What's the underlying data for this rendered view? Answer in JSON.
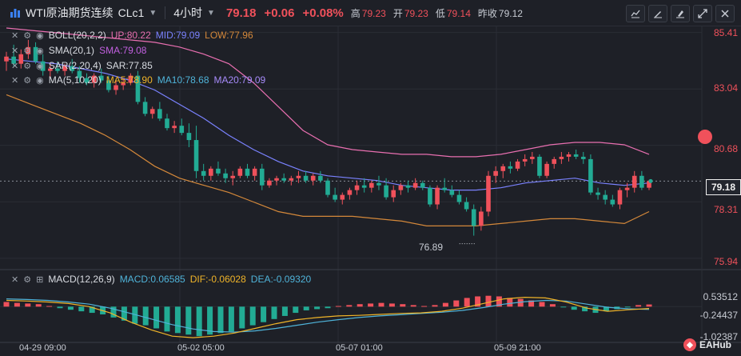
{
  "header": {
    "title": "WTI原油期货连续",
    "symbol": "CLc1",
    "timeframe": "4小时",
    "price": "79.18",
    "change": "+0.06",
    "change_pct": "+0.08%",
    "high_label": "高",
    "high": "79.23",
    "open_label": "开",
    "open": "79.23",
    "low_label": "低",
    "low": "79.14",
    "prev_label": "昨收",
    "prev": "79.12"
  },
  "legends": {
    "boll": {
      "name": "BOLL(20,2,2)",
      "up": "UP:80.22",
      "mid": "MID:79.09",
      "low": "LOW:77.96"
    },
    "sma": {
      "name": "SMA(20,1)",
      "val": "SMA:79.08"
    },
    "sar": {
      "name": "SAR(2,20,4)",
      "val": "SAR:77.85"
    },
    "ma": {
      "name": "MA(5,10,20)",
      "ma5": "MA5:78.90",
      "ma10": "MA10:78.68",
      "ma20": "MA20:79.09"
    },
    "macd": {
      "name": "MACD(12,26,9)",
      "macd": "MACD:0.06585",
      "dif": "DIF:-0.06028",
      "dea": "DEA:-0.09320"
    }
  },
  "price_axis": [
    "85.41",
    "83.04",
    "80.68",
    "79.18",
    "78.31",
    "75.94"
  ],
  "macd_axis": [
    "0.53512",
    "-0.24437",
    "-1.02387"
  ],
  "low_annotation": "76.89",
  "time_axis": [
    "04-29 09:00",
    "05-02 05:00",
    "05-07 01:00",
    "05-09 21:00"
  ],
  "brand": "EAHub",
  "colors": {
    "up": "#f0515b",
    "down": "#22ab94",
    "bg": "#1e2027"
  },
  "chart_data": {
    "type": "candlestick",
    "title": "WTI原油期货连续 CLc1 4小时",
    "ylim": [
      75.5,
      85.7
    ],
    "yticks": [
      85.41,
      83.04,
      80.68,
      78.31,
      75.94
    ],
    "current_price": 79.18,
    "candles": [
      [
        84.2,
        84.6,
        83.8,
        84.4
      ],
      [
        84.4,
        84.9,
        84.0,
        84.1
      ],
      [
        84.1,
        84.7,
        83.9,
        84.5
      ],
      [
        84.5,
        85.1,
        84.3,
        84.8
      ],
      [
        84.8,
        85.0,
        84.1,
        84.2
      ],
      [
        84.2,
        84.5,
        83.6,
        83.8
      ],
      [
        83.8,
        84.1,
        83.5,
        83.9
      ],
      [
        83.9,
        84.2,
        83.7,
        83.8
      ],
      [
        83.8,
        84.1,
        83.6,
        84.0
      ],
      [
        84.0,
        84.3,
        83.7,
        83.8
      ],
      [
        83.8,
        84.0,
        83.3,
        83.5
      ],
      [
        83.5,
        83.7,
        83.2,
        83.3
      ],
      [
        83.3,
        83.7,
        83.1,
        83.6
      ],
      [
        83.6,
        83.9,
        83.3,
        83.4
      ],
      [
        83.4,
        83.6,
        82.9,
        83.0
      ],
      [
        83.0,
        83.4,
        82.8,
        83.2
      ],
      [
        83.2,
        83.5,
        83.0,
        83.3
      ],
      [
        83.3,
        83.7,
        83.2,
        83.6
      ],
      [
        83.6,
        83.8,
        82.4,
        82.5
      ],
      [
        82.5,
        82.7,
        81.9,
        82.0
      ],
      [
        82.0,
        82.3,
        81.8,
        82.2
      ],
      [
        82.2,
        82.5,
        81.7,
        81.8
      ],
      [
        81.8,
        82.0,
        81.3,
        81.4
      ],
      [
        81.4,
        81.7,
        81.2,
        81.5
      ],
      [
        81.5,
        81.8,
        81.1,
        81.2
      ],
      [
        81.2,
        81.6,
        80.6,
        80.9
      ],
      [
        80.9,
        81.5,
        79.3,
        79.6
      ],
      [
        79.6,
        79.9,
        79.2,
        79.4
      ],
      [
        79.4,
        79.8,
        79.2,
        79.7
      ],
      [
        79.7,
        80.0,
        79.4,
        79.5
      ],
      [
        79.5,
        79.7,
        79.1,
        79.3
      ],
      [
        79.3,
        79.6,
        79.0,
        79.4
      ],
      [
        79.4,
        79.8,
        79.3,
        79.7
      ],
      [
        79.7,
        79.9,
        79.3,
        79.4
      ],
      [
        79.4,
        79.8,
        79.2,
        79.7
      ],
      [
        79.7,
        79.9,
        78.8,
        79.0
      ],
      [
        79.0,
        79.3,
        78.9,
        79.2
      ],
      [
        79.2,
        79.4,
        79.0,
        79.3
      ],
      [
        79.3,
        79.5,
        79.1,
        79.2
      ],
      [
        79.2,
        79.4,
        79.0,
        79.3
      ],
      [
        79.3,
        79.6,
        79.1,
        79.4
      ],
      [
        79.4,
        79.6,
        79.1,
        79.2
      ],
      [
        79.2,
        79.5,
        79.0,
        79.4
      ],
      [
        79.4,
        79.6,
        79.1,
        79.2
      ],
      [
        79.2,
        79.3,
        78.5,
        78.6
      ],
      [
        78.6,
        78.9,
        78.3,
        78.4
      ],
      [
        78.4,
        78.7,
        78.2,
        78.6
      ],
      [
        78.6,
        78.9,
        78.4,
        78.8
      ],
      [
        78.8,
        79.2,
        78.6,
        79.0
      ],
      [
        79.0,
        79.3,
        78.7,
        78.9
      ],
      [
        78.9,
        79.2,
        78.7,
        79.1
      ],
      [
        79.1,
        79.4,
        78.8,
        79.0
      ],
      [
        79.0,
        79.3,
        78.4,
        78.5
      ],
      [
        78.5,
        79.0,
        78.3,
        78.8
      ],
      [
        78.8,
        79.1,
        78.6,
        79.0
      ],
      [
        79.0,
        79.2,
        78.7,
        78.9
      ],
      [
        78.9,
        79.3,
        78.8,
        79.1
      ],
      [
        79.1,
        79.2,
        78.8,
        78.9
      ],
      [
        78.9,
        79.0,
        78.1,
        78.2
      ],
      [
        78.2,
        79.0,
        78.0,
        78.9
      ],
      [
        78.9,
        79.3,
        78.7,
        78.8
      ],
      [
        78.8,
        79.0,
        78.5,
        78.6
      ],
      [
        78.6,
        78.8,
        78.2,
        78.3
      ],
      [
        78.3,
        78.5,
        77.9,
        78.0
      ],
      [
        78.0,
        78.2,
        76.89,
        77.3
      ],
      [
        77.3,
        78.1,
        77.1,
        77.9
      ],
      [
        77.9,
        79.6,
        77.7,
        79.4
      ],
      [
        79.4,
        79.8,
        79.1,
        79.6
      ],
      [
        79.6,
        79.9,
        79.3,
        79.8
      ],
      [
        79.8,
        80.0,
        79.5,
        79.7
      ],
      [
        79.7,
        80.1,
        79.6,
        80.0
      ],
      [
        80.0,
        80.3,
        79.8,
        80.1
      ],
      [
        80.1,
        80.4,
        79.9,
        80.2
      ],
      [
        80.2,
        80.3,
        79.3,
        79.4
      ],
      [
        79.4,
        80.0,
        79.3,
        79.9
      ],
      [
        79.9,
        80.2,
        79.7,
        80.1
      ],
      [
        80.1,
        80.4,
        79.9,
        80.2
      ],
      [
        80.2,
        80.4,
        80.0,
        80.3
      ],
      [
        80.3,
        80.5,
        80.1,
        80.2
      ],
      [
        80.2,
        80.4,
        79.9,
        80.1
      ],
      [
        80.1,
        80.3,
        78.6,
        78.7
      ],
      [
        78.7,
        78.9,
        78.4,
        78.6
      ],
      [
        78.6,
        78.8,
        78.2,
        78.4
      ],
      [
        78.4,
        78.6,
        78.1,
        78.2
      ],
      [
        78.2,
        78.9,
        78.0,
        78.8
      ],
      [
        78.8,
        79.1,
        78.5,
        78.9
      ],
      [
        78.9,
        79.6,
        78.7,
        79.4
      ],
      [
        79.4,
        79.6,
        78.8,
        78.9
      ],
      [
        78.9,
        79.23,
        78.8,
        79.18
      ]
    ],
    "boll_up": [
      85.6,
      85.5,
      85.4,
      85.3,
      85.2,
      85.1,
      85.0,
      84.8,
      84.5,
      84.1,
      83.3,
      82.3,
      81.3,
      80.7,
      80.5,
      80.4,
      80.3,
      80.3,
      80.2,
      80.2,
      80.3,
      80.5,
      80.7,
      80.8,
      80.8,
      80.7,
      80.3
    ],
    "boll_mid": [
      84.3,
      84.2,
      84.1,
      83.9,
      83.7,
      83.4,
      83.0,
      82.4,
      81.8,
      81.1,
      80.5,
      80.0,
      79.6,
      79.4,
      79.3,
      79.2,
      79.0,
      78.9,
      78.8,
      78.8,
      78.9,
      79.1,
      79.2,
      79.3,
      79.1,
      79.0,
      79.1
    ],
    "boll_low": [
      82.8,
      82.4,
      82.0,
      81.6,
      81.1,
      80.5,
      79.8,
      79.3,
      79.0,
      78.7,
      78.3,
      77.9,
      77.7,
      77.7,
      77.7,
      77.6,
      77.5,
      77.3,
      77.3,
      77.3,
      77.4,
      77.5,
      77.6,
      77.6,
      77.5,
      77.4,
      77.9
    ],
    "macd_hist": [
      0.15,
      0.12,
      0.1,
      0.08,
      0.02,
      -0.05,
      -0.1,
      -0.15,
      -0.2,
      -0.25,
      -0.35,
      -0.45,
      -0.55,
      -0.6,
      -0.7,
      -0.8,
      -0.85,
      -0.9,
      -0.95,
      -0.9,
      -0.85,
      -0.8,
      -0.7,
      -0.6,
      -0.5,
      -0.4,
      -0.3,
      -0.2,
      -0.12,
      -0.08,
      -0.05,
      0.02,
      0.05,
      0.08,
      0.1,
      0.12,
      0.1,
      0.08,
      0.05,
      0.02,
      0.05,
      0.12,
      0.2,
      0.28,
      0.33,
      0.35,
      0.33,
      0.28,
      0.25,
      0.2,
      0.15,
      0.08,
      -0.02,
      -0.1,
      -0.15,
      -0.2,
      -0.15,
      -0.08,
      -0.02,
      0.05,
      0.07
    ],
    "macd_dif": [
      0.2,
      0.18,
      0.15,
      0.1,
      0.0,
      -0.2,
      -0.5,
      -0.75,
      -0.95,
      -1.0,
      -0.95,
      -0.85,
      -0.7,
      -0.55,
      -0.42,
      -0.35,
      -0.3,
      -0.28,
      -0.25,
      -0.22,
      -0.2,
      -0.15,
      -0.05,
      0.1,
      0.25,
      0.3,
      0.28,
      0.15,
      -0.05,
      -0.15,
      -0.1,
      -0.06
    ],
    "macd_dea": [
      0.25,
      0.23,
      0.2,
      0.15,
      0.08,
      -0.05,
      -0.22,
      -0.4,
      -0.58,
      -0.72,
      -0.8,
      -0.82,
      -0.78,
      -0.7,
      -0.6,
      -0.5,
      -0.42,
      -0.35,
      -0.3,
      -0.26,
      -0.22,
      -0.18,
      -0.12,
      -0.03,
      0.08,
      0.16,
      0.2,
      0.18,
      0.08,
      -0.02,
      -0.07,
      -0.09
    ]
  }
}
